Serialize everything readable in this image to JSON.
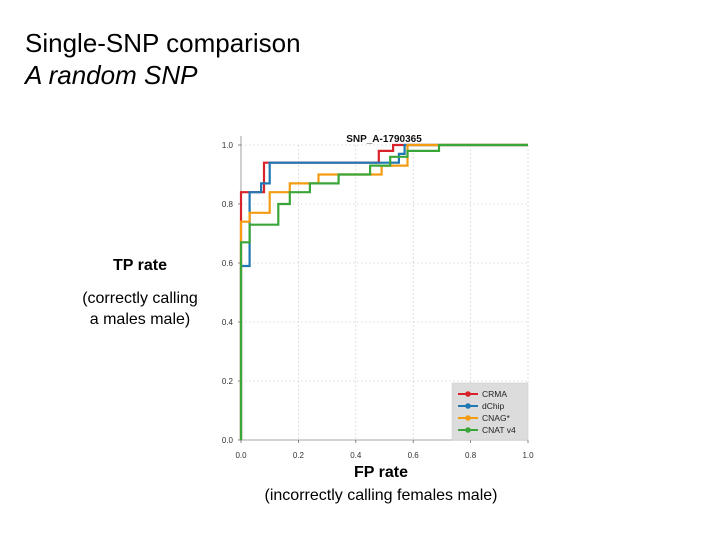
{
  "slide": {
    "title": "Single-SNP comparison",
    "subtitle": "A random SNP"
  },
  "axis_labels": {
    "y_main": "TP rate",
    "y_sub_line1": "(correctly calling",
    "y_sub_line2": "a males male)",
    "x_main": "FP rate",
    "x_sub": "(incorrectly calling females male)"
  },
  "chart_data": {
    "type": "line",
    "title": "SNP_A-1790365",
    "xlabel": "FP rate",
    "ylabel": "TP rate",
    "xlim": [
      0.0,
      1.0
    ],
    "ylim": [
      0.0,
      1.0
    ],
    "grid": true,
    "legend_position": "bottom-right",
    "xticks": [
      "0.0",
      "0.2",
      "0.4",
      "0.6",
      "0.8",
      "1.0"
    ],
    "yticks": [
      "0.0",
      "0.2",
      "0.4",
      "0.6",
      "0.8",
      "1.0"
    ],
    "series": [
      {
        "name": "CRMA",
        "color": "#d8232a",
        "x": [
          0.0,
          0.0,
          0.08,
          0.08,
          0.48,
          0.48,
          0.53,
          0.53,
          1.0
        ],
        "y": [
          0.0,
          0.84,
          0.84,
          0.94,
          0.94,
          0.98,
          0.98,
          1.0,
          1.0
        ]
      },
      {
        "name": "dChip",
        "color": "#1f78b4",
        "x": [
          0.0,
          0.0,
          0.03,
          0.03,
          0.07,
          0.07,
          0.1,
          0.1,
          0.55,
          0.55,
          0.57,
          0.57,
          1.0
        ],
        "y": [
          0.0,
          0.59,
          0.59,
          0.84,
          0.84,
          0.87,
          0.87,
          0.94,
          0.94,
          0.97,
          0.97,
          1.0,
          1.0
        ]
      },
      {
        "name": "CNAG*",
        "color": "#f39c12",
        "x": [
          0.0,
          0.0,
          0.03,
          0.03,
          0.1,
          0.1,
          0.17,
          0.17,
          0.27,
          0.27,
          0.49,
          0.49,
          0.58,
          0.58,
          1.0
        ],
        "y": [
          0.0,
          0.74,
          0.74,
          0.77,
          0.77,
          0.84,
          0.84,
          0.87,
          0.87,
          0.9,
          0.9,
          0.93,
          0.93,
          1.0,
          1.0
        ]
      },
      {
        "name": "CNAT v4",
        "color": "#3aa63a",
        "x": [
          0.0,
          0.0,
          0.03,
          0.03,
          0.13,
          0.13,
          0.17,
          0.17,
          0.24,
          0.24,
          0.34,
          0.34,
          0.45,
          0.45,
          0.52,
          0.52,
          0.58,
          0.58,
          0.69,
          0.69,
          1.0
        ],
        "y": [
          0.0,
          0.67,
          0.67,
          0.73,
          0.73,
          0.8,
          0.8,
          0.84,
          0.84,
          0.87,
          0.87,
          0.9,
          0.9,
          0.93,
          0.93,
          0.96,
          0.96,
          0.98,
          0.98,
          1.0,
          1.0
        ]
      }
    ],
    "legend": [
      "CRMA",
      "dChip",
      "CNAG*",
      "CNAT v4"
    ]
  }
}
